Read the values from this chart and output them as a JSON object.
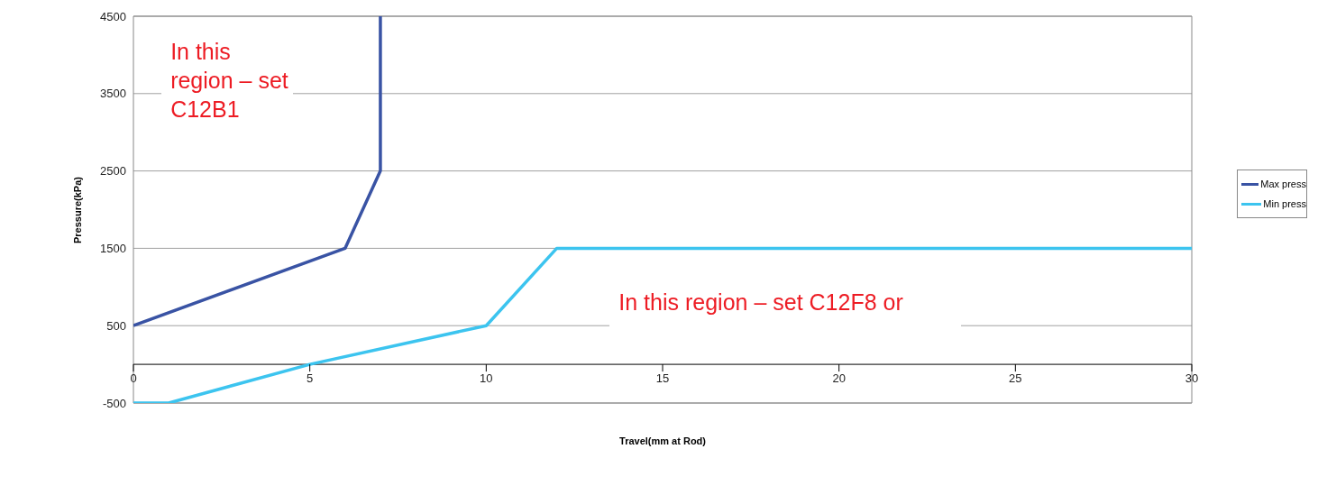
{
  "chart_data": {
    "type": "line",
    "xlabel": "Travel(mm at Rod)",
    "ylabel": "Pressure(kPa)",
    "xlim": [
      0,
      30
    ],
    "xticks": [
      0,
      5,
      10,
      15,
      20,
      25,
      30
    ],
    "ylim": [
      -500,
      4500
    ],
    "yticks": [
      -500,
      500,
      1500,
      2500,
      3500,
      4500
    ],
    "grid": "y",
    "legend": "right",
    "marker": "none",
    "line_style": "solid",
    "series": [
      {
        "name": "Max press",
        "color": "#3953a4",
        "x": [
          0,
          6,
          7,
          7
        ],
        "values": [
          500,
          1500,
          2500,
          4500
        ]
      },
      {
        "name": "Min press",
        "color": "#3cc4ef",
        "x": [
          0,
          1,
          5,
          10,
          12,
          30
        ],
        "values": [
          -500,
          -500,
          0,
          500,
          1500,
          1500
        ]
      }
    ],
    "annotations": [
      "In this region – set C12B1",
      "In this region – set C12F8 or"
    ]
  }
}
